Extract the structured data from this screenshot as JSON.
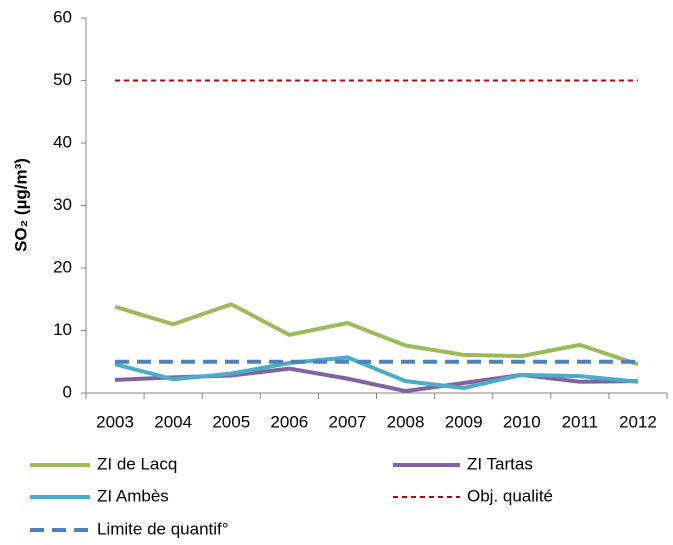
{
  "chart_data": {
    "type": "line",
    "y_label": "SO₂ (µg/m³)",
    "categories": [
      "2003",
      "2004",
      "2005",
      "2006",
      "2007",
      "2008",
      "2009",
      "2010",
      "2011",
      "2012"
    ],
    "series": [
      {
        "name": "ZI de Lacq",
        "color": "#9bbb59",
        "line_style": "solid",
        "values": [
          13.8,
          11,
          14.2,
          9.3,
          11.2,
          7.6,
          6.1,
          5.9,
          7.7,
          4.6
        ]
      },
      {
        "name": "ZI Tartas",
        "color": "#8064a2",
        "line_style": "solid",
        "values": [
          2.1,
          2.5,
          2.8,
          3.9,
          2.3,
          0.3,
          1.6,
          2.9,
          1.8,
          1.9
        ]
      },
      {
        "name": "ZI Ambès",
        "color": "#4bacc6",
        "line_style": "solid",
        "values": [
          4.6,
          2.2,
          3.1,
          4.8,
          5.7,
          1.9,
          0.8,
          2.9,
          2.7,
          1.8
        ]
      },
      {
        "name": "Obj. qualité",
        "color": "#c00000",
        "line_style": "dotted",
        "values": [
          50,
          50,
          50,
          50,
          50,
          50,
          50,
          50,
          50,
          50
        ]
      },
      {
        "name": "Limite de quantif°",
        "color": "#4f81bd",
        "line_style": "dashed",
        "values": [
          5,
          5,
          5,
          5,
          5,
          5,
          5,
          5,
          5,
          5
        ]
      }
    ],
    "ylim": [
      0,
      60
    ],
    "yticks": [
      0,
      10,
      20,
      30,
      40,
      50,
      60
    ],
    "grid": false,
    "legend": "bottom"
  }
}
